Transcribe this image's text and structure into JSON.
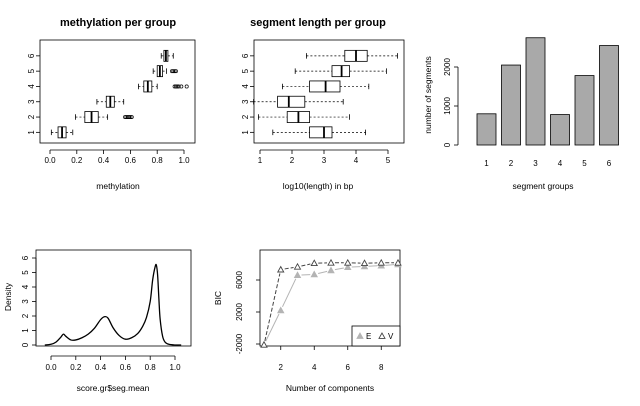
{
  "chart_data": [
    {
      "type": "boxplot",
      "title": "methylation per group",
      "xlabel": "methylation",
      "ylabel": "",
      "xlim": [
        0.0,
        1.0
      ],
      "xticks": [
        "0.0",
        "0.2",
        "0.4",
        "0.6",
        "0.8",
        "1.0"
      ],
      "yticks": [
        "1",
        "2",
        "3",
        "4",
        "5",
        "6"
      ],
      "groups": [
        {
          "name": "1",
          "min": 0.01,
          "q1": 0.06,
          "median": 0.09,
          "q3": 0.12,
          "max": 0.17,
          "outliers": []
        },
        {
          "name": "2",
          "min": 0.19,
          "q1": 0.26,
          "median": 0.31,
          "q3": 0.36,
          "max": 0.43,
          "outliers": [
            0.56,
            0.57,
            0.58,
            0.59,
            0.6,
            0.61
          ]
        },
        {
          "name": "3",
          "min": 0.35,
          "q1": 0.42,
          "median": 0.45,
          "q3": 0.48,
          "max": 0.55,
          "outliers": []
        },
        {
          "name": "4",
          "min": 0.66,
          "q1": 0.7,
          "median": 0.73,
          "q3": 0.76,
          "max": 0.8,
          "outliers": [
            0.93,
            0.94,
            0.95,
            0.96,
            0.98,
            1.02
          ]
        },
        {
          "name": "5",
          "min": 0.77,
          "q1": 0.8,
          "median": 0.82,
          "q3": 0.84,
          "max": 0.87,
          "outliers": [
            0.91,
            0.92,
            0.93,
            0.94
          ]
        },
        {
          "name": "6",
          "min": 0.83,
          "q1": 0.85,
          "median": 0.865,
          "q3": 0.88,
          "max": 0.92,
          "outliers": []
        }
      ]
    },
    {
      "type": "boxplot",
      "title": "segment length per group",
      "xlabel": "log10(length) in bp",
      "ylabel": "",
      "xlim": [
        1,
        5
      ],
      "xticks": [
        "1",
        "2",
        "3",
        "4",
        "5"
      ],
      "yticks": [
        "1",
        "2",
        "3",
        "4",
        "5",
        "6"
      ],
      "groups": [
        {
          "name": "1",
          "min": 1.4,
          "q1": 2.55,
          "median": 3.0,
          "q3": 3.25,
          "max": 4.3,
          "outliers": []
        },
        {
          "name": "2",
          "min": 0.95,
          "q1": 1.85,
          "median": 2.2,
          "q3": 2.55,
          "max": 3.8,
          "outliers": []
        },
        {
          "name": "3",
          "min": 0.8,
          "q1": 1.55,
          "median": 1.9,
          "q3": 2.4,
          "max": 3.6,
          "outliers": []
        },
        {
          "name": "4",
          "min": 1.7,
          "q1": 2.55,
          "median": 3.05,
          "q3": 3.5,
          "max": 4.4,
          "outliers": []
        },
        {
          "name": "5",
          "min": 2.1,
          "q1": 3.25,
          "median": 3.55,
          "q3": 3.8,
          "max": 4.95,
          "outliers": []
        },
        {
          "name": "6",
          "min": 2.45,
          "q1": 3.65,
          "median": 4.0,
          "q3": 4.35,
          "max": 5.3,
          "outliers": []
        }
      ]
    },
    {
      "type": "bar",
      "title": "",
      "xlabel": "segment groups",
      "ylabel": "number of segments",
      "categories": [
        "1",
        "2",
        "3",
        "4",
        "5",
        "6"
      ],
      "values": [
        800,
        2050,
        2750,
        780,
        1780,
        2550
      ],
      "ylim": [
        0,
        2800
      ],
      "yticks": [
        "0",
        "1000",
        "2000"
      ],
      "bar_color": "#a9a9a9"
    },
    {
      "type": "line",
      "title": "",
      "xlabel": "score.gr$seg.mean",
      "ylabel": "Density",
      "xlim": [
        -0.12,
        1.12
      ],
      "ylim": [
        0,
        6
      ],
      "xticks": [
        "0.0",
        "0.2",
        "0.4",
        "0.6",
        "0.8",
        "1.0"
      ],
      "yticks": [
        "0",
        "1",
        "2",
        "3",
        "4",
        "5",
        "6"
      ],
      "x": [
        -0.05,
        0.0,
        0.04,
        0.08,
        0.1,
        0.12,
        0.16,
        0.2,
        0.25,
        0.3,
        0.35,
        0.4,
        0.43,
        0.46,
        0.5,
        0.55,
        0.6,
        0.65,
        0.7,
        0.74,
        0.77,
        0.8,
        0.82,
        0.84,
        0.85,
        0.86,
        0.87,
        0.88,
        0.9,
        0.92,
        0.95,
        1.0,
        1.05
      ],
      "y": [
        0.0,
        0.05,
        0.2,
        0.55,
        0.75,
        0.6,
        0.35,
        0.35,
        0.5,
        0.75,
        1.15,
        1.75,
        1.95,
        1.85,
        1.2,
        0.65,
        0.4,
        0.5,
        0.8,
        1.3,
        1.9,
        3.0,
        4.5,
        5.4,
        5.5,
        4.8,
        3.2,
        1.8,
        0.6,
        0.2,
        0.05,
        0.0,
        0.0
      ]
    },
    {
      "type": "line",
      "title": "",
      "xlabel": "Number of components",
      "ylabel": "BIC",
      "xlim": [
        1,
        9
      ],
      "ylim": [
        -2200,
        8400
      ],
      "xticks": [
        "2",
        "4",
        "6",
        "8"
      ],
      "yticks": [
        "-2000",
        "2000",
        "6000"
      ],
      "legend": "bottom-right",
      "series": [
        {
          "name": "E",
          "color": "#b4b4b4",
          "marker": "filled-triangle",
          "x": [
            1,
            2,
            3,
            4,
            5,
            6,
            7,
            8,
            9
          ],
          "values": [
            -2100,
            2200,
            6600,
            6700,
            7200,
            7600,
            7700,
            7800,
            7950
          ]
        },
        {
          "name": "V",
          "color": "#444444",
          "marker": "open-triangle",
          "x": [
            1,
            2,
            3,
            4,
            5,
            6,
            7,
            8,
            9
          ],
          "values": [
            -2100,
            7300,
            7650,
            8100,
            8150,
            8150,
            8100,
            8150,
            8150
          ]
        }
      ]
    }
  ]
}
